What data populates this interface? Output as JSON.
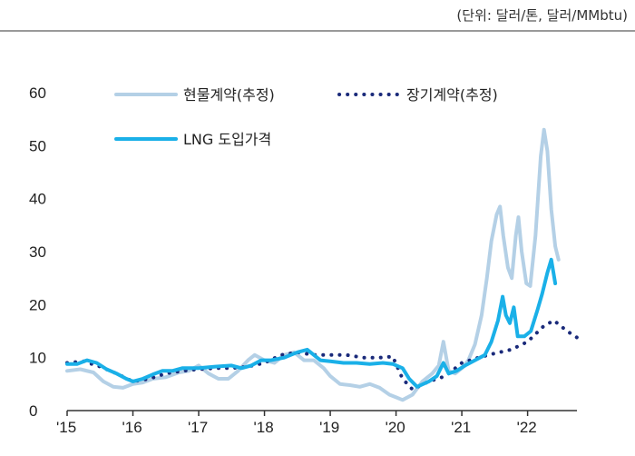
{
  "unit_label": "(단위: 달러/톤, 달러/MMbtu)",
  "chart_data": {
    "type": "line",
    "title": "",
    "xlabel": "",
    "ylabel": "",
    "ylim": [
      0,
      60
    ],
    "yticks": [
      0,
      10,
      20,
      30,
      40,
      50,
      60
    ],
    "xlim": [
      2015.0,
      2022.75
    ],
    "xticks": [
      {
        "value": 2015,
        "label": "'15"
      },
      {
        "value": 2016,
        "label": "'16"
      },
      {
        "value": 2017,
        "label": "'17"
      },
      {
        "value": 2018,
        "label": "'18"
      },
      {
        "value": 2019,
        "label": "'19"
      },
      {
        "value": 2020,
        "label": "'20"
      },
      {
        "value": 2021,
        "label": "'21"
      },
      {
        "value": 2022,
        "label": "'22"
      }
    ],
    "grid": false,
    "legend_position": "top-left",
    "series": [
      {
        "name": "현물계약(추정)",
        "style": "solid-light",
        "color": "#b4d0e6",
        "points": [
          [
            2015.0,
            7.5
          ],
          [
            2015.2,
            7.8
          ],
          [
            2015.4,
            7.2
          ],
          [
            2015.55,
            5.5
          ],
          [
            2015.7,
            4.5
          ],
          [
            2015.85,
            4.3
          ],
          [
            2016.0,
            5.0
          ],
          [
            2016.15,
            5.3
          ],
          [
            2016.3,
            6.0
          ],
          [
            2016.5,
            6.3
          ],
          [
            2016.7,
            7.2
          ],
          [
            2016.85,
            7.5
          ],
          [
            2017.0,
            8.5
          ],
          [
            2017.15,
            7.0
          ],
          [
            2017.3,
            6.0
          ],
          [
            2017.45,
            6.0
          ],
          [
            2017.6,
            7.5
          ],
          [
            2017.75,
            9.5
          ],
          [
            2017.85,
            10.5
          ],
          [
            2018.0,
            9.5
          ],
          [
            2018.15,
            9.0
          ],
          [
            2018.3,
            10.5
          ],
          [
            2018.45,
            11.0
          ],
          [
            2018.6,
            9.5
          ],
          [
            2018.75,
            9.5
          ],
          [
            2018.9,
            8.0
          ],
          [
            2019.0,
            6.5
          ],
          [
            2019.15,
            5.0
          ],
          [
            2019.3,
            4.8
          ],
          [
            2019.45,
            4.5
          ],
          [
            2019.6,
            5.0
          ],
          [
            2019.75,
            4.3
          ],
          [
            2019.9,
            3.0
          ],
          [
            2020.0,
            2.5
          ],
          [
            2020.1,
            2.0
          ],
          [
            2020.25,
            3.0
          ],
          [
            2020.4,
            5.5
          ],
          [
            2020.55,
            7.0
          ],
          [
            2020.65,
            8.5
          ],
          [
            2020.72,
            13.0
          ],
          [
            2020.8,
            7.5
          ],
          [
            2020.9,
            7.0
          ],
          [
            2021.0,
            8.0
          ],
          [
            2021.1,
            9.5
          ],
          [
            2021.2,
            12.5
          ],
          [
            2021.3,
            18.0
          ],
          [
            2021.38,
            25.0
          ],
          [
            2021.45,
            32.0
          ],
          [
            2021.53,
            37.0
          ],
          [
            2021.58,
            38.5
          ],
          [
            2021.63,
            33.0
          ],
          [
            2021.7,
            27.0
          ],
          [
            2021.76,
            25.0
          ],
          [
            2021.82,
            33.0
          ],
          [
            2021.86,
            36.5
          ],
          [
            2021.91,
            30.0
          ],
          [
            2021.98,
            24.0
          ],
          [
            2022.04,
            23.5
          ],
          [
            2022.12,
            33.0
          ],
          [
            2022.2,
            48.0
          ],
          [
            2022.25,
            53.0
          ],
          [
            2022.3,
            49.0
          ],
          [
            2022.36,
            38.0
          ],
          [
            2022.42,
            31.0
          ],
          [
            2022.47,
            28.5
          ]
        ]
      },
      {
        "name": "장기계약(추정)",
        "style": "dotted",
        "color": "#1a2a7a",
        "points": [
          [
            2015.0,
            9.0
          ],
          [
            2015.25,
            9.3
          ],
          [
            2015.5,
            8.3
          ],
          [
            2015.75,
            7.0
          ],
          [
            2016.0,
            5.5
          ],
          [
            2016.25,
            6.0
          ],
          [
            2016.5,
            7.0
          ],
          [
            2016.75,
            7.5
          ],
          [
            2017.0,
            7.8
          ],
          [
            2017.25,
            8.0
          ],
          [
            2017.5,
            8.0
          ],
          [
            2017.75,
            8.3
          ],
          [
            2018.0,
            9.0
          ],
          [
            2018.25,
            10.5
          ],
          [
            2018.5,
            11.0
          ],
          [
            2018.75,
            10.5
          ],
          [
            2019.0,
            10.5
          ],
          [
            2019.25,
            10.5
          ],
          [
            2019.5,
            10.0
          ],
          [
            2019.75,
            10.0
          ],
          [
            2019.95,
            10.2
          ],
          [
            2020.1,
            6.0
          ],
          [
            2020.25,
            4.0
          ],
          [
            2020.5,
            5.5
          ],
          [
            2020.75,
            6.5
          ],
          [
            2021.0,
            9.0
          ],
          [
            2021.25,
            10.0
          ],
          [
            2021.5,
            10.8
          ],
          [
            2021.75,
            11.5
          ],
          [
            2022.0,
            13.0
          ],
          [
            2022.25,
            16.0
          ],
          [
            2022.4,
            17.0
          ],
          [
            2022.6,
            15.0
          ],
          [
            2022.75,
            13.8
          ]
        ]
      },
      {
        "name": "LNG 도입가격",
        "style": "solid",
        "color": "#1ab0e8",
        "points": [
          [
            2015.0,
            8.8
          ],
          [
            2015.15,
            8.8
          ],
          [
            2015.3,
            9.5
          ],
          [
            2015.45,
            9.0
          ],
          [
            2015.6,
            7.8
          ],
          [
            2015.75,
            7.0
          ],
          [
            2015.9,
            6.0
          ],
          [
            2016.0,
            5.5
          ],
          [
            2016.15,
            6.0
          ],
          [
            2016.3,
            6.8
          ],
          [
            2016.45,
            7.5
          ],
          [
            2016.6,
            7.5
          ],
          [
            2016.75,
            8.0
          ],
          [
            2017.0,
            8.0
          ],
          [
            2017.25,
            8.3
          ],
          [
            2017.5,
            8.5
          ],
          [
            2017.65,
            8.0
          ],
          [
            2017.8,
            8.5
          ],
          [
            2017.95,
            9.5
          ],
          [
            2018.1,
            9.5
          ],
          [
            2018.3,
            10.0
          ],
          [
            2018.5,
            11.0
          ],
          [
            2018.65,
            11.5
          ],
          [
            2018.7,
            11.0
          ],
          [
            2018.85,
            9.5
          ],
          [
            2019.0,
            9.3
          ],
          [
            2019.2,
            9.0
          ],
          [
            2019.4,
            9.0
          ],
          [
            2019.6,
            8.8
          ],
          [
            2019.8,
            9.0
          ],
          [
            2019.95,
            8.8
          ],
          [
            2020.1,
            8.0
          ],
          [
            2020.2,
            6.0
          ],
          [
            2020.32,
            4.5
          ],
          [
            2020.5,
            5.5
          ],
          [
            2020.62,
            6.5
          ],
          [
            2020.72,
            9.0
          ],
          [
            2020.8,
            7.0
          ],
          [
            2020.92,
            7.5
          ],
          [
            2021.05,
            8.5
          ],
          [
            2021.2,
            9.5
          ],
          [
            2021.35,
            10.5
          ],
          [
            2021.45,
            13.0
          ],
          [
            2021.55,
            17.0
          ],
          [
            2021.62,
            21.5
          ],
          [
            2021.67,
            18.0
          ],
          [
            2021.73,
            16.5
          ],
          [
            2021.79,
            19.5
          ],
          [
            2021.85,
            14.0
          ],
          [
            2021.95,
            14.0
          ],
          [
            2022.05,
            15.0
          ],
          [
            2022.15,
            19.0
          ],
          [
            2022.22,
            22.0
          ],
          [
            2022.3,
            26.0
          ],
          [
            2022.36,
            28.5
          ],
          [
            2022.42,
            24.0
          ]
        ]
      }
    ]
  }
}
